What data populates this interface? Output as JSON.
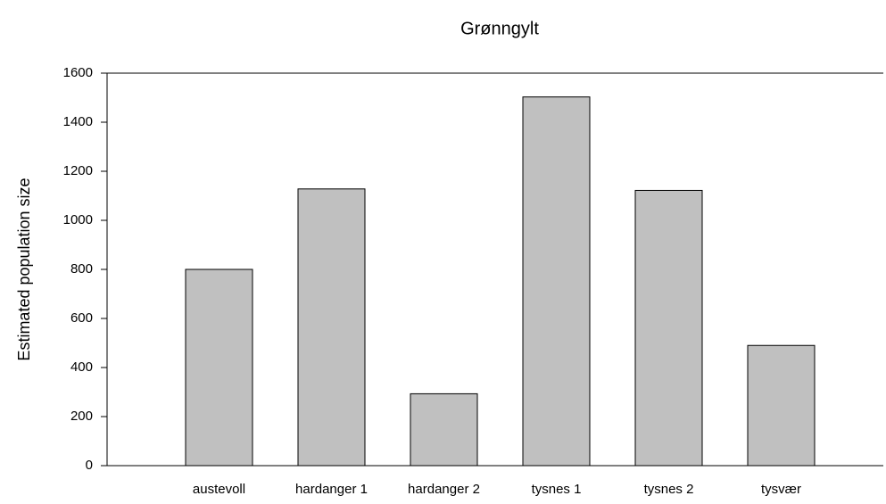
{
  "chart_data": {
    "type": "bar",
    "title": "Grønngylt",
    "y_label": "Estimated population size",
    "categories": [
      "austevoll",
      "hardanger 1",
      "hardanger 2",
      "tysnes 1",
      "tysnes 2",
      "tysvær"
    ],
    "values": [
      800,
      1128,
      293,
      1503,
      1122,
      490
    ],
    "color": "#c0c0c0",
    "ylim": [
      0,
      1600
    ],
    "yticks": [
      0,
      200,
      400,
      600,
      800,
      1000,
      1200,
      1400,
      1600
    ],
    "grid": false
  }
}
